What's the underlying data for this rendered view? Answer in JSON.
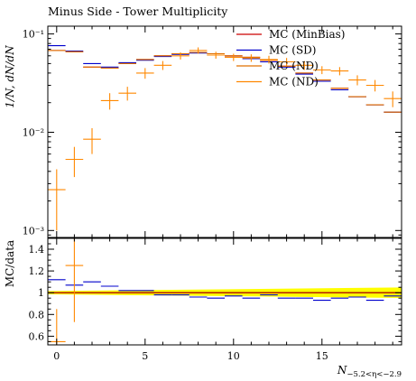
{
  "chart_data": [
    {
      "type": "scatter",
      "title": "Minus Side - Tower Multiplicity",
      "ylabel": "1/N, dN/dN",
      "yscale": "log",
      "xlim": [
        -0.5,
        19.5
      ],
      "ylim": [
        0.00085,
        0.12
      ],
      "y_major_ticks": [
        0.001,
        0.01,
        0.1
      ],
      "y_tick_labels": [
        "10⁻³",
        "10⁻²",
        "10⁻¹"
      ],
      "legend_position": "top-right",
      "series": [
        {
          "name": "MC (MinBias)",
          "color": "#cc0000",
          "style": "step",
          "x": [
            0,
            1,
            2,
            3,
            4,
            5,
            6,
            7,
            8,
            9,
            10,
            11,
            12,
            13,
            14,
            15,
            16,
            17,
            18,
            19
          ],
          "y": [
            0.068,
            0.066,
            0.046,
            0.045,
            0.05,
            0.055,
            0.06,
            0.063,
            0.065,
            0.063,
            0.06,
            0.058,
            0.054,
            0.047,
            0.04,
            0.034,
            0.028,
            0.023,
            0.019,
            0.016
          ]
        },
        {
          "name": "MC (SD)",
          "color": "#0000cc",
          "style": "step",
          "x": [
            0,
            1,
            2,
            3,
            4,
            5,
            6,
            7,
            8,
            9,
            10,
            11,
            12,
            13,
            14,
            15,
            16,
            17,
            18,
            19
          ],
          "y": [
            0.076,
            0.067,
            0.05,
            0.046,
            0.051,
            0.054,
            0.059,
            0.062,
            0.064,
            0.061,
            0.058,
            0.056,
            0.052,
            0.046,
            0.039,
            0.033,
            0.027,
            0.023,
            0.019,
            0.016
          ]
        },
        {
          "name": "MC (ND)",
          "color": "#e07000",
          "style": "step",
          "x": [
            0,
            1,
            2,
            3,
            4,
            5,
            6,
            7,
            8,
            9,
            10,
            11,
            12,
            13,
            14,
            15,
            16,
            17,
            18,
            19
          ],
          "y": [
            0.068,
            0.066,
            0.046,
            0.045,
            0.05,
            0.055,
            0.06,
            0.063,
            0.065,
            0.063,
            0.06,
            0.058,
            0.054,
            0.047,
            0.04,
            0.034,
            0.028,
            0.023,
            0.019,
            0.016
          ]
        },
        {
          "name": "MC (ND)",
          "color": "#ff8800",
          "style": "errorbar",
          "x": [
            0,
            1,
            2,
            3,
            4,
            5,
            6,
            7,
            8,
            9,
            10,
            11,
            12,
            13,
            14,
            15,
            16,
            17,
            18,
            19
          ],
          "y": [
            0.0026,
            0.0053,
            0.0085,
            0.021,
            0.025,
            0.04,
            0.048,
            0.06,
            0.068,
            0.061,
            0.058,
            0.057,
            0.055,
            0.052,
            0.048,
            0.043,
            0.042,
            0.034,
            0.03,
            0.022
          ],
          "yerr_low": [
            0.0016,
            0.0018,
            0.0025,
            0.004,
            0.004,
            0.005,
            0.005,
            0.005,
            0.005,
            0.005,
            0.005,
            0.005,
            0.005,
            0.005,
            0.005,
            0.004,
            0.004,
            0.004,
            0.004,
            0.004
          ],
          "yerr_high": [
            0.0016,
            0.0018,
            0.0025,
            0.004,
            0.004,
            0.005,
            0.005,
            0.005,
            0.005,
            0.005,
            0.005,
            0.005,
            0.005,
            0.005,
            0.005,
            0.004,
            0.004,
            0.004,
            0.004,
            0.004
          ]
        }
      ]
    },
    {
      "type": "scatter",
      "ylabel": "MC/data",
      "xlabel": "N",
      "xlabel_subscript": "−5.2<η<−2.9",
      "xlim": [
        -0.5,
        19.5
      ],
      "ylim": [
        0.52,
        1.5
      ],
      "y_ticks": [
        0.6,
        0.8,
        1.0,
        1.2,
        1.4
      ],
      "y_tick_labels": [
        "0.6",
        "0.8",
        "1",
        "1.2",
        "1.4"
      ],
      "x_ticks": [
        0,
        5,
        10,
        15
      ],
      "x_tick_labels": [
        "0",
        "5",
        "10",
        "15"
      ],
      "band": {
        "color": "#ffff00",
        "x": [
          -0.5,
          19.5
        ],
        "low": [
          0.985,
          0.952
        ],
        "high": [
          1.015,
          1.048
        ]
      },
      "series": [
        {
          "name": "MC (MinBias)",
          "color": "#cc0000",
          "style": "step",
          "x": [
            0,
            1,
            2,
            3,
            4,
            5,
            6,
            7,
            8,
            9,
            10,
            11,
            12,
            13,
            14,
            15,
            16,
            17,
            18,
            19
          ],
          "y": [
            1.0,
            1.0,
            1.0,
            1.0,
            1.0,
            1.0,
            1.0,
            1.0,
            1.0,
            1.0,
            1.0,
            1.0,
            1.0,
            1.0,
            1.0,
            1.0,
            1.0,
            1.0,
            1.0,
            1.0
          ]
        },
        {
          "name": "MC (SD)",
          "color": "#0000cc",
          "style": "step",
          "x": [
            0,
            1,
            2,
            3,
            4,
            5,
            6,
            7,
            8,
            9,
            10,
            11,
            12,
            13,
            14,
            15,
            16,
            17,
            18,
            19
          ],
          "y": [
            1.12,
            1.07,
            1.1,
            1.06,
            1.02,
            1.02,
            0.98,
            0.98,
            0.96,
            0.95,
            0.97,
            0.95,
            0.98,
            0.95,
            0.95,
            0.93,
            0.95,
            0.96,
            0.93,
            0.97
          ]
        },
        {
          "name": "MC (ND)",
          "color": "#ff8800",
          "style": "errorbar",
          "x": [
            0,
            1
          ],
          "y": [
            0.55,
            1.25
          ],
          "yerr_low": [
            0.3,
            0.52
          ],
          "yerr_high": [
            0.3,
            0.52
          ]
        }
      ]
    }
  ]
}
